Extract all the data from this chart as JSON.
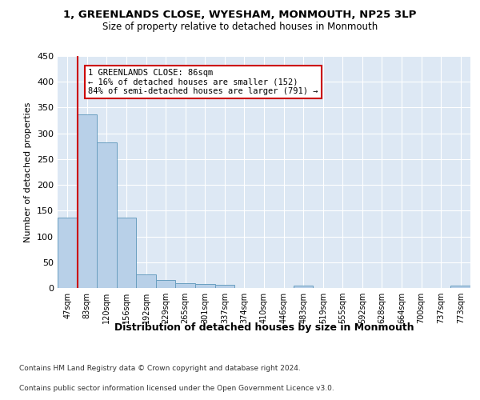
{
  "title1": "1, GREENLANDS CLOSE, WYESHAM, MONMOUTH, NP25 3LP",
  "title2": "Size of property relative to detached houses in Monmouth",
  "xlabel": "Distribution of detached houses by size in Monmouth",
  "ylabel": "Number of detached properties",
  "bar_labels": [
    "47sqm",
    "83sqm",
    "120sqm",
    "156sqm",
    "192sqm",
    "229sqm",
    "265sqm",
    "301sqm",
    "337sqm",
    "374sqm",
    "410sqm",
    "446sqm",
    "483sqm",
    "519sqm",
    "555sqm",
    "592sqm",
    "628sqm",
    "664sqm",
    "700sqm",
    "737sqm",
    "773sqm"
  ],
  "bar_values": [
    136,
    336,
    282,
    136,
    27,
    15,
    10,
    7,
    6,
    0,
    0,
    0,
    5,
    0,
    0,
    0,
    0,
    0,
    0,
    0,
    4
  ],
  "bar_color": "#b8d0e8",
  "bar_edge_color": "#6a9fc0",
  "vline_color": "#cc0000",
  "annotation_text": "1 GREENLANDS CLOSE: 86sqm\n← 16% of detached houses are smaller (152)\n84% of semi-detached houses are larger (791) →",
  "annotation_box_color": "#ffffff",
  "annotation_box_edge": "#cc0000",
  "ylim": [
    0,
    450
  ],
  "yticks": [
    0,
    50,
    100,
    150,
    200,
    250,
    300,
    350,
    400,
    450
  ],
  "background_color": "#dde8f4",
  "grid_color": "#ffffff",
  "footer1": "Contains HM Land Registry data © Crown copyright and database right 2024.",
  "footer2": "Contains public sector information licensed under the Open Government Licence v3.0."
}
